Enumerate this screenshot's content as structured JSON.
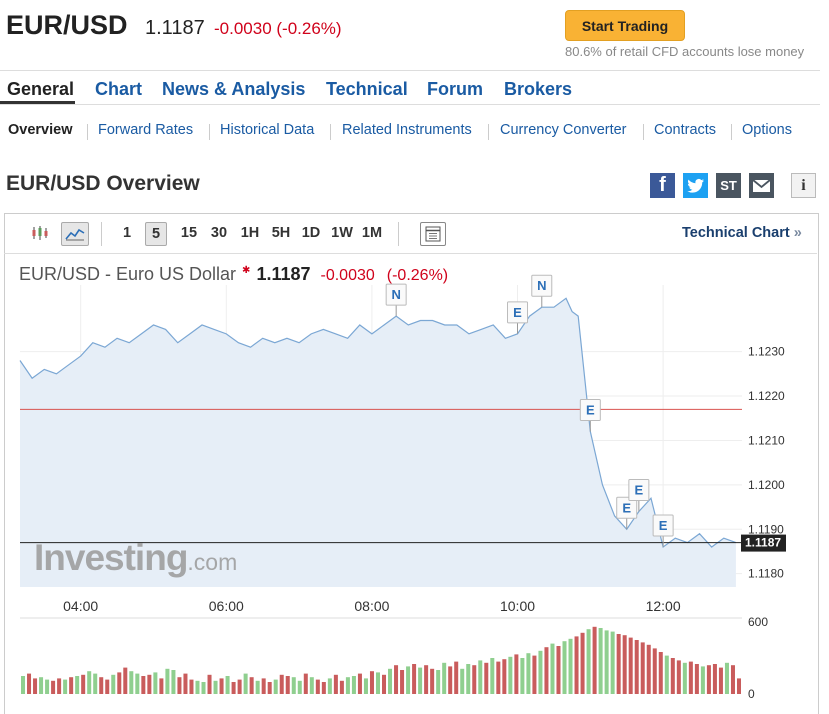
{
  "header": {
    "pair": "EUR/USD",
    "price": "1.1187",
    "change": "-0.0030 (-0.26%)",
    "cta_label": "Start Trading",
    "disclaimer": "80.6% of retail CFD accounts lose money"
  },
  "main_nav": [
    "General",
    "Chart",
    "News & Analysis",
    "Technical",
    "Forum",
    "Brokers"
  ],
  "sub_nav": [
    "Overview",
    "Forward Rates",
    "Historical Data",
    "Related Instruments",
    "Currency Converter",
    "Contracts",
    "Options"
  ],
  "overview_title": "EUR/USD Overview",
  "share": {
    "facebook": "f",
    "st": "ST",
    "info": "i"
  },
  "toolbar": {
    "timeframes": [
      "1",
      "5",
      "15",
      "30",
      "1H",
      "5H",
      "1D",
      "1W",
      "1M"
    ],
    "active_timeframe": "5",
    "technical_chart": "Technical Chart",
    "technical_chart_arrow": "»"
  },
  "chart_header": {
    "name": "EUR/USD - Euro US Dollar",
    "price": "1.1187",
    "change": "-0.0030",
    "change_pct": "(-0.26%)"
  },
  "watermark": {
    "brand": "Investing",
    "suffix": ".com"
  },
  "colors": {
    "accent": "#1a5ba3",
    "down": "#d0021b",
    "cta": "#f9b234",
    "line": "#7ba7d4",
    "area": "#e8f0f8",
    "vol_up": "#8fcf8f",
    "vol_down": "#c95c5c",
    "prev_close": "#d9534f"
  },
  "chart_data": {
    "type": "area",
    "x": [
      "03:10",
      "03:20",
      "03:30",
      "03:40",
      "03:50",
      "04:00",
      "04:10",
      "04:20",
      "04:30",
      "04:40",
      "04:50",
      "05:00",
      "05:10",
      "05:20",
      "05:30",
      "05:40",
      "05:50",
      "06:00",
      "06:10",
      "06:20",
      "06:30",
      "06:40",
      "06:50",
      "07:00",
      "07:10",
      "07:20",
      "07:30",
      "07:40",
      "07:50",
      "08:00",
      "08:10",
      "08:20",
      "08:30",
      "08:40",
      "08:50",
      "09:00",
      "09:10",
      "09:20",
      "09:30",
      "09:40",
      "09:50",
      "10:00",
      "10:10",
      "10:20",
      "10:30",
      "10:40",
      "10:45",
      "10:50",
      "11:00",
      "11:10",
      "11:20",
      "11:30",
      "11:40",
      "11:50",
      "12:00",
      "12:10",
      "12:20",
      "12:30",
      "12:40",
      "12:50",
      "13:00"
    ],
    "y": [
      1.1228,
      1.1224,
      1.1226,
      1.1225,
      1.1227,
      1.1229,
      1.1232,
      1.1231,
      1.1233,
      1.1232,
      1.1234,
      1.1236,
      1.1235,
      1.1232,
      1.1234,
      1.1236,
      1.1235,
      1.1234,
      1.1232,
      1.1231,
      1.1233,
      1.1232,
      1.1233,
      1.1232,
      1.1234,
      1.1235,
      1.1234,
      1.1233,
      1.1236,
      1.1234,
      1.1236,
      1.1238,
      1.1236,
      1.1237,
      1.1237,
      1.1236,
      1.1236,
      1.1234,
      1.1235,
      1.1236,
      1.1233,
      1.1234,
      1.1238,
      1.124,
      1.124,
      1.1242,
      1.1239,
      1.1238,
      1.1212,
      1.12,
      1.1193,
      1.119,
      1.1194,
      1.1197,
      1.1186,
      1.1188,
      1.1187,
      1.1189,
      1.1186,
      1.1188,
      1.1187
    ],
    "ylim": [
      1.1177,
      1.1245
    ],
    "y_ticks": [
      "1.1230",
      "1.1220",
      "1.1210",
      "1.1200",
      "1.1190",
      "1.1180"
    ],
    "x_ticks": [
      "04:00",
      "06:00",
      "08:00",
      "10:00",
      "12:00"
    ],
    "previous_close": 1.1217,
    "last_price": 1.1187,
    "last_price_label": "1.1187",
    "events": [
      {
        "label": "N",
        "time": "08:20"
      },
      {
        "label": "E",
        "time": "10:00"
      },
      {
        "label": "N",
        "time": "10:20"
      },
      {
        "label": "E",
        "time": "11:00"
      },
      {
        "label": "E",
        "time": "11:30"
      },
      {
        "label": "E",
        "time": "11:40"
      },
      {
        "label": "E",
        "time": "12:00"
      }
    ],
    "volume": {
      "y_ticks": [
        "600",
        "0"
      ],
      "ylim": [
        0,
        600
      ],
      "values": [
        150,
        170,
        130,
        140,
        120,
        110,
        130,
        120,
        140,
        150,
        160,
        190,
        170,
        140,
        120,
        160,
        180,
        220,
        190,
        170,
        150,
        160,
        180,
        130,
        210,
        200,
        140,
        170,
        120,
        110,
        100,
        160,
        110,
        130,
        150,
        100,
        120,
        170,
        140,
        110,
        130,
        100,
        120,
        160,
        150,
        140,
        110,
        170,
        140,
        120,
        100,
        130,
        160,
        110,
        140,
        150,
        170,
        130,
        190,
        180,
        160,
        210,
        240,
        200,
        230,
        250,
        220,
        240,
        210,
        200,
        260,
        230,
        270,
        210,
        250,
        240,
        280,
        260,
        300,
        270,
        290,
        310,
        330,
        300,
        340,
        320,
        360,
        390,
        420,
        400,
        440,
        460,
        480,
        510,
        540,
        560,
        550,
        530,
        520,
        500,
        490,
        470,
        450,
        430,
        410,
        380,
        350,
        320,
        300,
        280,
        260,
        270,
        250,
        230,
        240,
        250,
        220,
        260,
        240,
        130
      ],
      "directions": "udduuddududuuddudduudduduuddduudududdududdudduududdudduududududdududduudduudududduduudududuudduduuuddddddddudduddudddudduudduuduu"
    }
  }
}
